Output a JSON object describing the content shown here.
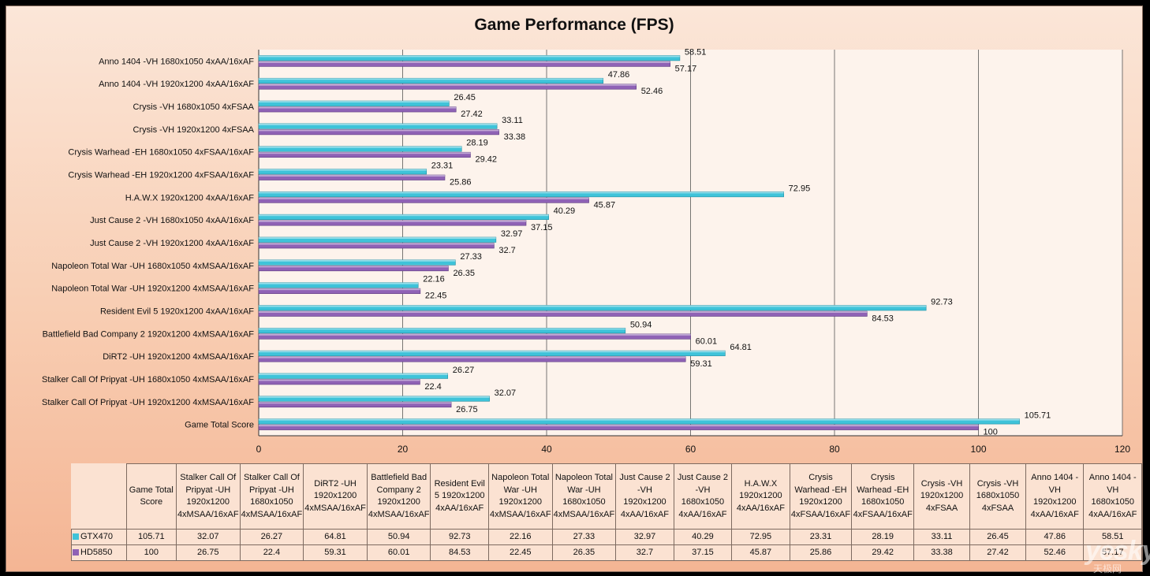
{
  "chart_data": {
    "type": "bar",
    "orientation": "horizontal",
    "title": "Game Performance (FPS)",
    "xlim": [
      0,
      120
    ],
    "xticks": [
      0,
      20,
      40,
      60,
      80,
      100,
      120
    ],
    "grid": true,
    "categories": [
      "Anno 1404 -VH 1680x1050 4xAA/16xAF",
      "Anno 1404 -VH 1920x1200 4xAA/16xAF",
      "Crysis -VH 1680x1050 4xFSAA",
      "Crysis -VH 1920x1200 4xFSAA",
      "Crysis Warhead -EH 1680x1050 4xFSAA/16xAF",
      "Crysis Warhead -EH 1920x1200 4xFSAA/16xAF",
      "H.A.W.X 1920x1200 4xAA/16xAF",
      "Just Cause 2 -VH 1680x1050 4xAA/16xAF",
      "Just Cause 2 -VH 1920x1200 4xAA/16xAF",
      "Napoleon Total War -UH 1680x1050 4xMSAA/16xAF",
      "Napoleon Total War -UH 1920x1200 4xMSAA/16xAF",
      "Resident Evil 5 1920x1200 4xAA/16xAF",
      "Battlefield Bad Company 2 1920x1200 4xMSAA/16xAF",
      "DiRT2 -UH 1920x1200 4xMSAA/16xAF",
      "Stalker Call Of Pripyat -UH 1680x1050 4xMSAA/16xAF",
      "Stalker Call Of Pripyat -UH 1920x1200 4xMSAA/16xAF",
      "Game Total Score"
    ],
    "series": [
      {
        "name": "GTX470",
        "color": "#3fc3d9",
        "values": [
          58.51,
          47.86,
          26.45,
          33.11,
          28.19,
          23.31,
          72.95,
          40.29,
          32.97,
          27.33,
          22.16,
          92.73,
          50.94,
          64.81,
          26.27,
          32.07,
          105.71
        ]
      },
      {
        "name": "HD5850",
        "color": "#8f62b5",
        "values": [
          57.17,
          52.46,
          27.42,
          33.38,
          29.42,
          25.86,
          45.87,
          37.15,
          32.7,
          26.35,
          22.45,
          84.53,
          60.01,
          59.31,
          22.4,
          26.75,
          100
        ]
      }
    ],
    "table": {
      "headers": [
        "Game Total Score",
        "Stalker Call Of Pripyat -UH 1920x1200 4xMSAA/16xAF",
        "Stalker Call Of Pripyat -UH 1680x1050 4xMSAA/16xAF",
        "DiRT2 -UH 1920x1200 4xMSAA/16xAF",
        "Battlefield Bad Company 2 1920x1200 4xMSAA/16xAF",
        "Resident Evil 5 1920x1200 4xAA/16xAF",
        "Napoleon Total War -UH 1920x1200 4xMSAA/16xAF",
        "Napoleon Total War -UH 1680x1050 4xMSAA/16xAF",
        "Just Cause 2 -VH 1920x1200 4xAA/16xAF",
        "Just Cause 2 -VH 1680x1050 4xAA/16xAF",
        "H.A.W.X 1920x1200 4xAA/16xAF",
        "Crysis Warhead -EH 1920x1200 4xFSAA/16xAF",
        "Crysis Warhead -EH 1680x1050 4xFSAA/16xAF",
        "Crysis -VH 1920x1200 4xFSAA",
        "Crysis -VH 1680x1050 4xFSAA",
        "Anno 1404 -VH 1920x1200 4xAA/16xAF",
        "Anno 1404 -VH 1680x1050 4xAA/16xAF"
      ],
      "rows": [
        {
          "name": "GTX470",
          "values": [
            "105.71",
            "32.07",
            "26.27",
            "64.81",
            "50.94",
            "92.73",
            "22.16",
            "27.33",
            "32.97",
            "40.29",
            "72.95",
            "23.31",
            "28.19",
            "33.11",
            "26.45",
            "47.86",
            "58.51"
          ]
        },
        {
          "name": "HD5850",
          "values": [
            "100",
            "26.75",
            "22.4",
            "59.31",
            "60.01",
            "84.53",
            "22.45",
            "26.35",
            "32.7",
            "37.15",
            "45.87",
            "25.86",
            "29.42",
            "33.38",
            "27.42",
            "52.46",
            "57.17"
          ]
        }
      ]
    }
  },
  "watermark": {
    "text": "yesky",
    "sub": "天极网"
  }
}
